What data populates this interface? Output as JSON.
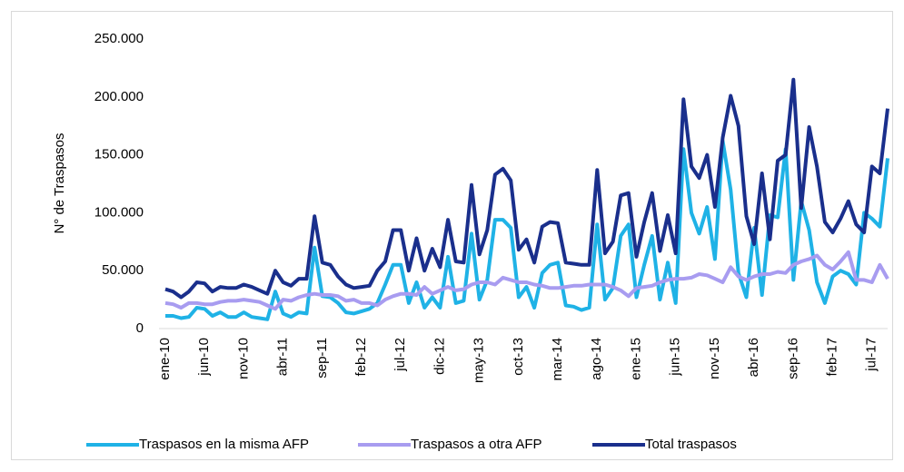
{
  "chart_data": {
    "type": "line",
    "y_label": "N° de Traspasos",
    "categories": [
      "ene-10",
      null,
      null,
      null,
      null,
      "jun-10",
      null,
      null,
      null,
      null,
      "nov-10",
      null,
      null,
      null,
      null,
      "abr-11",
      null,
      null,
      null,
      null,
      "sep-11",
      null,
      null,
      null,
      null,
      "feb-12",
      null,
      null,
      null,
      null,
      "jul-12",
      null,
      null,
      null,
      null,
      "dic-12",
      null,
      null,
      null,
      null,
      "may-13",
      null,
      null,
      null,
      null,
      "oct-13",
      null,
      null,
      null,
      null,
      "mar-14",
      null,
      null,
      null,
      null,
      "ago-14",
      null,
      null,
      null,
      null,
      "ene-15",
      null,
      null,
      null,
      null,
      "jun-15",
      null,
      null,
      null,
      null,
      "nov-15",
      null,
      null,
      null,
      null,
      "abr-16",
      null,
      null,
      null,
      null,
      "sep-16",
      null,
      null,
      null,
      null,
      "feb-17",
      null,
      null,
      null,
      null,
      "jul-17",
      null,
      null
    ],
    "series": [
      {
        "name": "Traspasos en la misma AFP",
        "color": "#1fb2e6",
        "values": [
          11000,
          11000,
          9000,
          10000,
          18000,
          17000,
          11000,
          14000,
          10000,
          10000,
          14000,
          10000,
          9000,
          8000,
          32000,
          13000,
          10000,
          14000,
          13000,
          70000,
          28000,
          27000,
          22000,
          14000,
          13000,
          15000,
          17000,
          22000,
          38000,
          55000,
          55000,
          22000,
          40000,
          18000,
          27000,
          18000,
          62000,
          22000,
          24000,
          82000,
          25000,
          42000,
          94000,
          94000,
          87000,
          27000,
          36000,
          18000,
          48000,
          55000,
          57000,
          20000,
          19000,
          16000,
          18000,
          90000,
          25000,
          35000,
          80000,
          90000,
          27000,
          55000,
          80000,
          25000,
          57000,
          22000,
          155000,
          100000,
          82000,
          105000,
          60000,
          162000,
          120000,
          48000,
          27000,
          87000,
          29000,
          98000,
          96000,
          155000,
          42000,
          110000,
          85000,
          40000,
          22000,
          45000,
          50000,
          47000,
          38000,
          100000,
          95000,
          88000,
          147000
        ]
      },
      {
        "name": "Traspasos a otra AFP",
        "color": "#a89cf0",
        "values": [
          22000,
          21000,
          18000,
          22000,
          22000,
          21000,
          21000,
          23000,
          24000,
          24000,
          25000,
          24000,
          23000,
          20000,
          17000,
          25000,
          24000,
          27000,
          29000,
          30000,
          29000,
          29000,
          28000,
          24000,
          25000,
          22000,
          22000,
          20000,
          25000,
          28000,
          30000,
          30000,
          29000,
          36000,
          30000,
          33000,
          36000,
          33000,
          34000,
          38000,
          40000,
          40000,
          38000,
          44000,
          42000,
          40000,
          40000,
          38000,
          37000,
          35000,
          35000,
          36000,
          37000,
          37000,
          38000,
          38000,
          38000,
          36000,
          33000,
          28000,
          35000,
          36000,
          37000,
          40000,
          42000,
          43000,
          43000,
          44000,
          47000,
          46000,
          43000,
          40000,
          53000,
          45000,
          42000,
          45000,
          47000,
          47000,
          49000,
          48000,
          55000,
          58000,
          60000,
          63000,
          55000,
          51000,
          58000,
          66000,
          42000,
          42000,
          40000,
          55000,
          43000
        ]
      },
      {
        "name": "Total traspasos",
        "color": "#1a2f8c",
        "values": [
          34000,
          32000,
          27000,
          32000,
          40000,
          39000,
          32000,
          36000,
          35000,
          35000,
          38000,
          36000,
          33000,
          30000,
          50000,
          40000,
          37000,
          43000,
          43000,
          97000,
          57000,
          55000,
          45000,
          38000,
          35000,
          36000,
          37000,
          50000,
          58000,
          85000,
          85000,
          50000,
          78000,
          50000,
          69000,
          53000,
          94000,
          58000,
          57000,
          124000,
          64000,
          85000,
          133000,
          138000,
          128000,
          68000,
          77000,
          57000,
          88000,
          92000,
          91000,
          57000,
          56000,
          55000,
          55000,
          137000,
          65000,
          75000,
          115000,
          117000,
          62000,
          92000,
          117000,
          67000,
          98000,
          65000,
          198000,
          140000,
          130000,
          150000,
          105000,
          165000,
          201000,
          175000,
          97000,
          73000,
          134000,
          77000,
          145000,
          150000,
          215000,
          104000,
          174000,
          140000,
          92000,
          83000,
          95000,
          110000,
          90000,
          83000,
          140000,
          134000,
          190000
        ]
      }
    ],
    "ylim": [
      0,
      250000
    ],
    "yticks": [
      0,
      {
        "value": 50000,
        "label": "50.000"
      },
      {
        "value": 100000,
        "label": "100.000"
      },
      {
        "value": 150000,
        "label": "150.000"
      },
      {
        "value": 200000,
        "label": "200.000"
      },
      {
        "value": 250000,
        "label": "250.000"
      }
    ],
    "grid": false
  }
}
